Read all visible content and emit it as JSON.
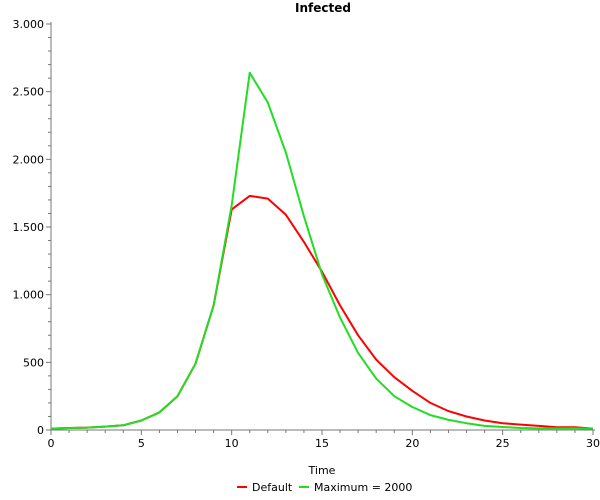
{
  "chart_data": {
    "type": "line",
    "title": "Infected",
    "xlabel": "Time",
    "ylabel": "",
    "xlim": [
      0,
      30
    ],
    "ylim": [
      0,
      3000
    ],
    "x_ticks": [
      0,
      5,
      10,
      15,
      20,
      25,
      30
    ],
    "x_tick_labels": [
      "0",
      "5",
      "10",
      "15",
      "20",
      "25",
      "30"
    ],
    "y_ticks": [
      0,
      500,
      1000,
      1500,
      2000,
      2500,
      3000
    ],
    "y_tick_labels": [
      "0",
      "500",
      "1.000",
      "1.500",
      "2.000",
      "2.500",
      "3.000"
    ],
    "grid": false,
    "legend_position": "bottom-center",
    "series": [
      {
        "name": "Default",
        "color": "#ff0000",
        "x": [
          0,
          1,
          2,
          3,
          4,
          5,
          6,
          7,
          8,
          9,
          10,
          11,
          12,
          13,
          14,
          15,
          16,
          17,
          18,
          19,
          20,
          21,
          22,
          23,
          24,
          25,
          26,
          27,
          28,
          29,
          30
        ],
        "values": [
          10,
          15,
          18,
          25,
          35,
          70,
          130,
          250,
          490,
          920,
          1630,
          1730,
          1710,
          1590,
          1390,
          1170,
          920,
          700,
          520,
          390,
          290,
          200,
          140,
          100,
          70,
          50,
          40,
          30,
          20,
          20,
          10
        ]
      },
      {
        "name": "Maximum = 2000",
        "color": "#22dd22",
        "x": [
          0,
          1,
          2,
          3,
          4,
          5,
          6,
          7,
          8,
          9,
          10,
          11,
          12,
          13,
          14,
          15,
          16,
          17,
          18,
          19,
          20,
          21,
          22,
          23,
          24,
          25,
          26,
          27,
          28,
          29,
          30
        ],
        "values": [
          10,
          15,
          18,
          25,
          35,
          70,
          130,
          250,
          490,
          920,
          1660,
          2640,
          2420,
          2050,
          1580,
          1150,
          830,
          570,
          380,
          250,
          170,
          110,
          75,
          50,
          30,
          22,
          15,
          12,
          12,
          12,
          10
        ]
      }
    ]
  }
}
